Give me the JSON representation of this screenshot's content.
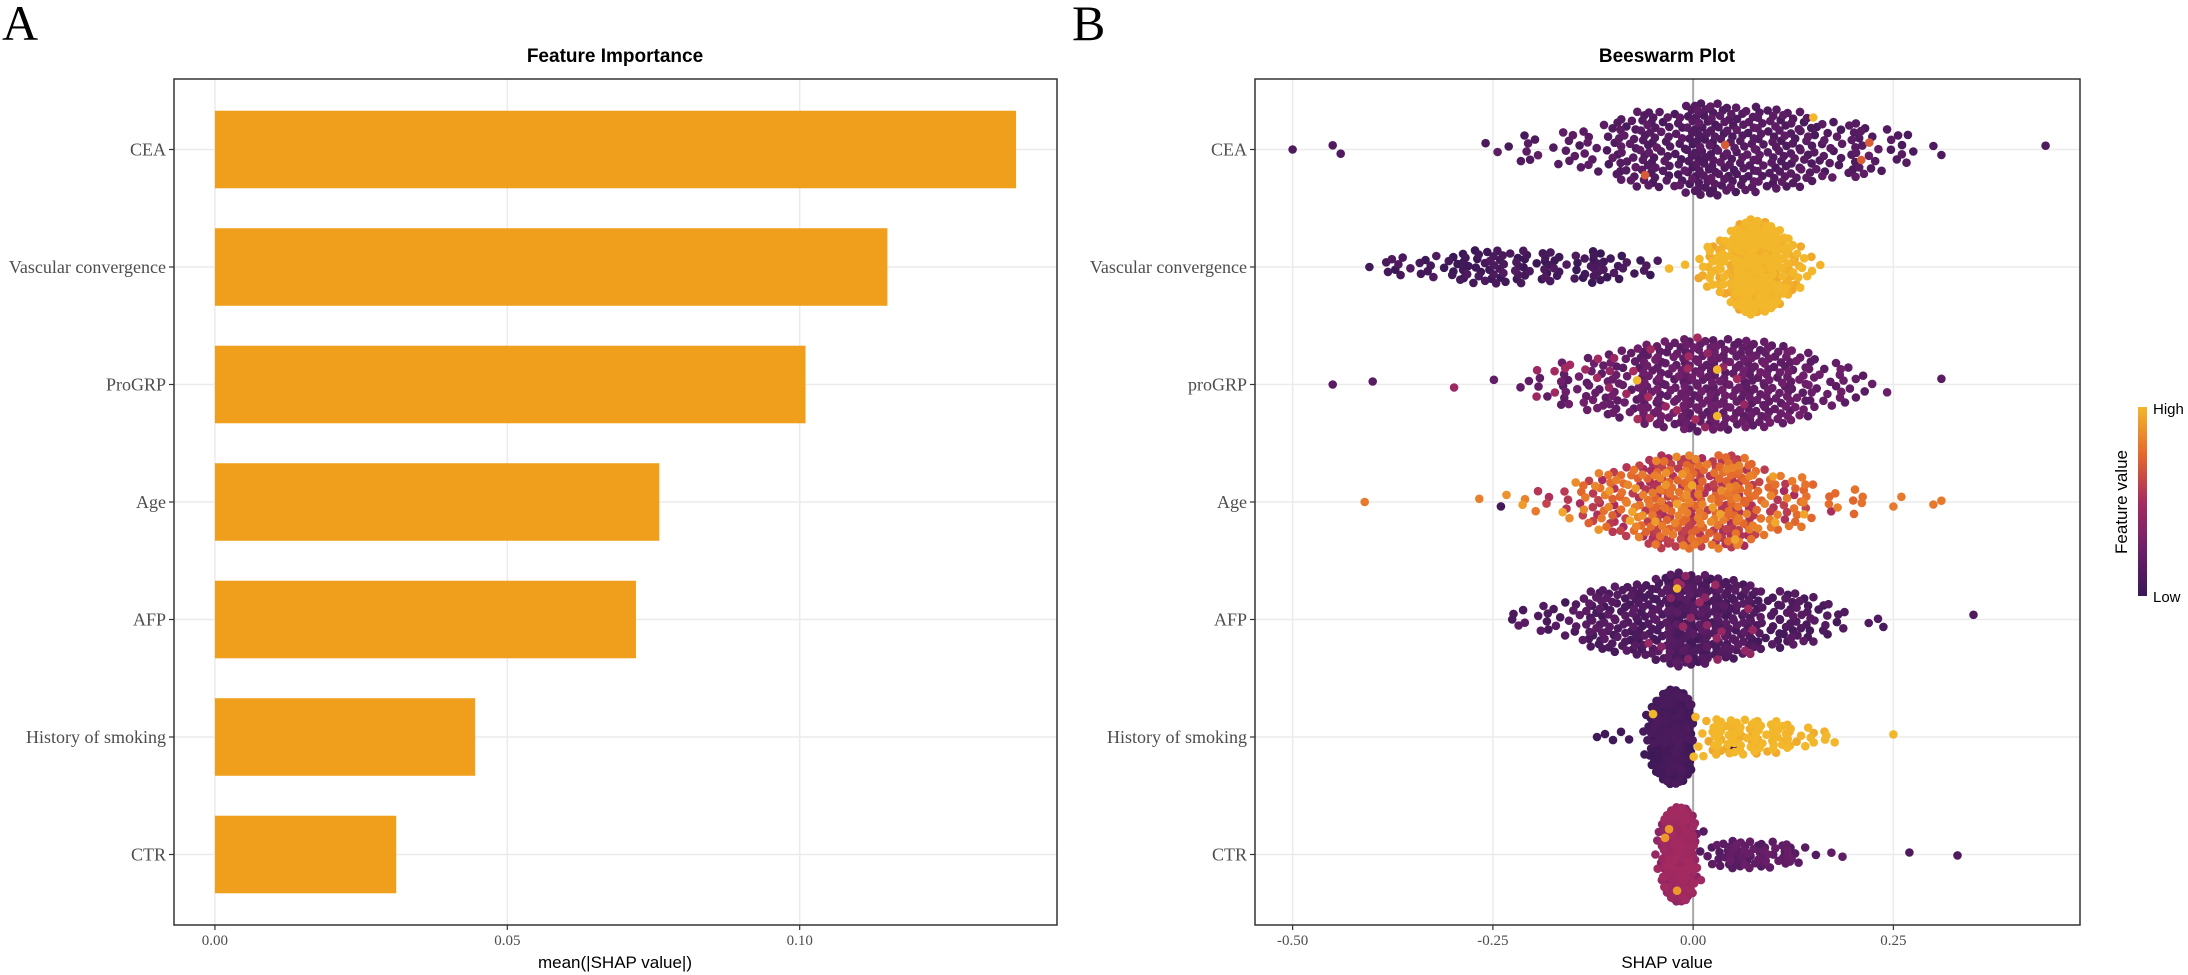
{
  "panel_labels": [
    "A",
    "B"
  ],
  "chart_data": [
    {
      "type": "bar",
      "orientation": "horizontal",
      "title": "Feature Importance",
      "xlabel": "mean(|SHAP value|)",
      "ylabel": "",
      "categories": [
        "CEA",
        "Vascular convergence",
        "ProGRP",
        "Age",
        "AFP",
        "History of smoking",
        "CTR"
      ],
      "values": [
        0.137,
        0.115,
        0.101,
        0.076,
        0.072,
        0.0445,
        0.031
      ],
      "xlim": [
        -0.007,
        0.144
      ],
      "xticks": [
        0.0,
        0.05,
        0.1
      ],
      "xtick_labels": [
        "0.00",
        "0.05",
        "0.10"
      ],
      "bar_color": "#F09F1C",
      "grid": true
    },
    {
      "type": "scatter",
      "subtype": "beeswarm",
      "title": "Beeswarm Plot",
      "xlabel": "SHAP value",
      "ylabel": "",
      "categories": [
        "CEA",
        "Vascular convergence",
        "proGRP",
        "Age",
        "AFP",
        "History of smoking",
        "CTR"
      ],
      "xlim": [
        -0.547,
        0.483
      ],
      "xticks": [
        -0.5,
        -0.25,
        0.0,
        0.25
      ],
      "xtick_labels": [
        "-0.50",
        "-0.25",
        "0.00",
        "0.25"
      ],
      "zero_line": 0,
      "grid": true,
      "legend": {
        "title": "Feature value",
        "high_label": "High",
        "low_label": "Low",
        "placement": "right",
        "palette": [
          "#3a1856",
          "#6e1f6a",
          "#a82b5f",
          "#e4692c",
          "#f3b72b"
        ]
      },
      "distributions": [
        {
          "feature": "CEA",
          "groups": [
            {
              "n": 385,
              "mean": 0.035,
              "sd": 0.115,
              "min": -0.42,
              "max": 0.28,
              "feature_value": 0.12
            },
            {
              "values": [
                -0.5,
                -0.45,
                -0.44,
                0.3,
                0.31,
                0.44
              ],
              "feature_value": 0.1
            },
            {
              "values": [
                -0.06,
                0.21,
                0.22,
                0.04
              ],
              "feature_value": 0.7
            },
            {
              "values": [
                0.15
              ],
              "feature_value": 1.0
            }
          ]
        },
        {
          "feature": "Vascular convergence",
          "groups": [
            {
              "n": 120,
              "mean": -0.22,
              "sd": 0.09,
              "min": -0.44,
              "max": -0.02,
              "feature_value": 0.05
            },
            {
              "n": 300,
              "mean": 0.075,
              "sd": 0.03,
              "min": -0.01,
              "max": 0.16,
              "feature_value": 1.0
            },
            {
              "values": [
                -0.03,
                -0.01
              ],
              "feature_value": 1.0
            }
          ]
        },
        {
          "feature": "proGRP",
          "groups": [
            {
              "n": 380,
              "mean": 0.02,
              "sd": 0.095,
              "min": -0.42,
              "max": 0.26,
              "feature_value": 0.2
            },
            {
              "n": 30,
              "mean": -0.08,
              "sd": 0.09,
              "min": -0.3,
              "max": 0.1,
              "feature_value": 0.45
            },
            {
              "values": [
                -0.45,
                -0.4,
                0.31
              ],
              "feature_value": 0.15
            },
            {
              "values": [
                -0.07,
                0.03,
                0.03
              ],
              "feature_value": 1.0
            }
          ]
        },
        {
          "feature": "Age",
          "groups": [
            {
              "n": 220,
              "mean": 0.015,
              "sd": 0.075,
              "min": -0.28,
              "max": 0.22,
              "feature_value": 0.78
            },
            {
              "n": 150,
              "mean": -0.02,
              "sd": 0.08,
              "min": -0.28,
              "max": 0.2,
              "feature_value": 0.55
            },
            {
              "n": 30,
              "mean": 0.0,
              "sd": 0.1,
              "min": -0.25,
              "max": 0.2,
              "feature_value": 0.9
            },
            {
              "values": [
                -0.41,
                0.25,
                0.26,
                0.3,
                0.31
              ],
              "feature_value": 0.8
            },
            {
              "values": [
                -0.24
              ],
              "feature_value": 0.05
            }
          ]
        },
        {
          "feature": "AFP",
          "groups": [
            {
              "n": 410,
              "mean": 0.0,
              "sd": 0.085,
              "min": -0.27,
              "max": 0.28,
              "feature_value": 0.1
            },
            {
              "n": 20,
              "mean": 0.0,
              "sd": 0.04,
              "min": -0.1,
              "max": 0.1,
              "feature_value": 0.4
            },
            {
              "values": [
                0.35
              ],
              "feature_value": 0.1
            },
            {
              "values": [
                -0.02
              ],
              "feature_value": 1.0
            }
          ]
        },
        {
          "feature": "History of smoking",
          "groups": [
            {
              "n": 300,
              "mean": -0.025,
              "sd": 0.014,
              "min": -0.12,
              "max": 0.0,
              "feature_value": 0.03
            },
            {
              "values": [
                -0.12,
                -0.11,
                -0.1,
                -0.09,
                -0.08,
                0.05
              ],
              "feature_value": 0.03
            },
            {
              "n": 100,
              "mean": 0.07,
              "sd": 0.045,
              "min": 0.0,
              "max": 0.22,
              "feature_value": 1.0
            },
            {
              "values": [
                0.25,
                -0.05
              ],
              "feature_value": 1.0
            }
          ]
        },
        {
          "feature": "CTR",
          "groups": [
            {
              "n": 330,
              "mean": -0.018,
              "sd": 0.011,
              "min": -0.05,
              "max": 0.01,
              "feature_value": 0.42
            },
            {
              "n": 70,
              "mean": 0.06,
              "sd": 0.045,
              "min": 0.0,
              "max": 0.19,
              "feature_value": 0.17
            },
            {
              "values": [
                0.27,
                0.33
              ],
              "feature_value": 0.1
            },
            {
              "values": [
                -0.03,
                -0.02,
                -0.035
              ],
              "feature_value": 0.9
            }
          ]
        }
      ]
    }
  ]
}
